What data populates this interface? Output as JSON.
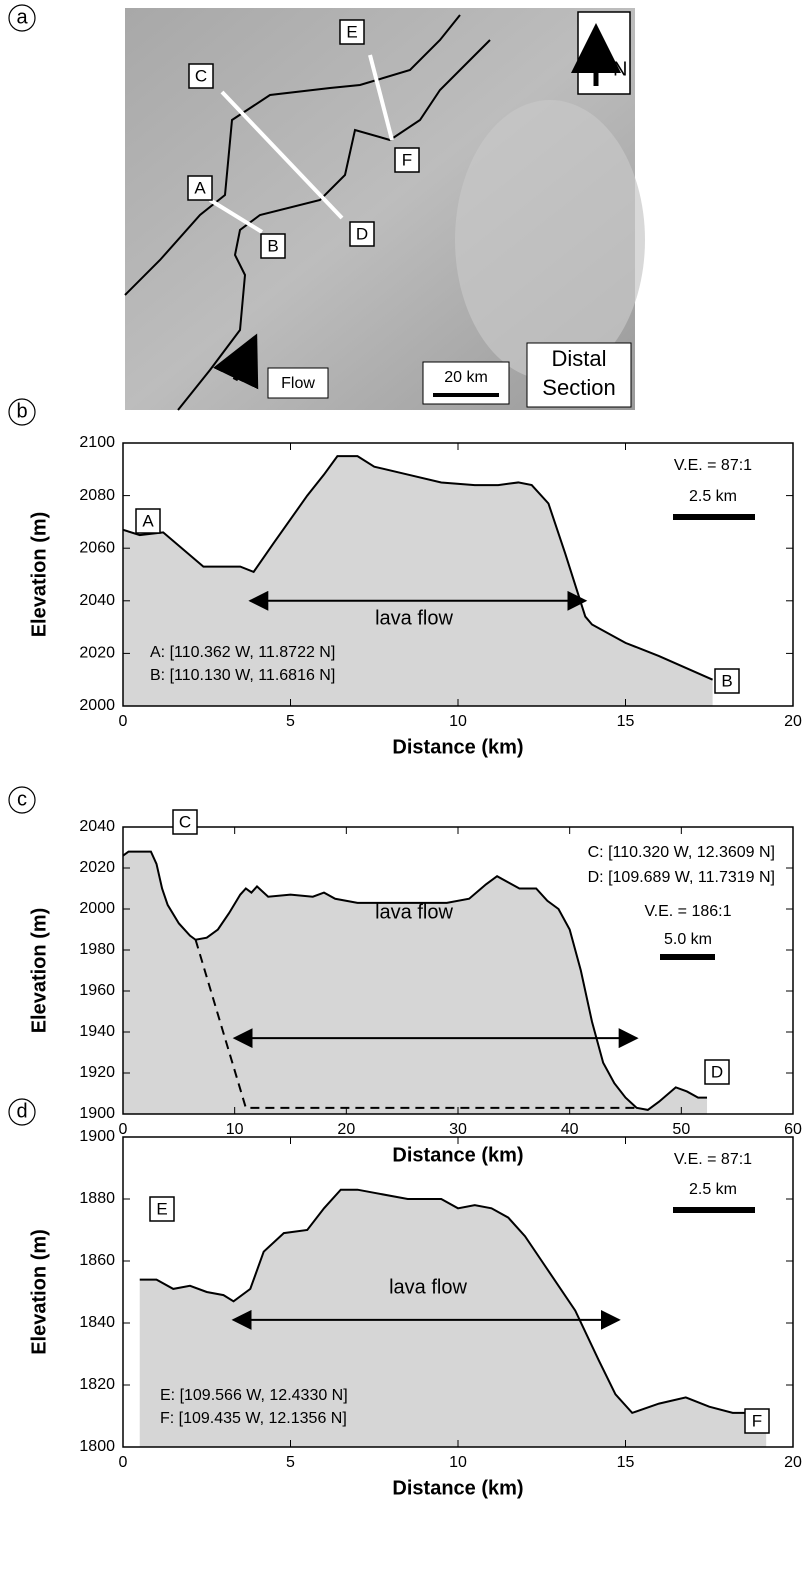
{
  "map": {
    "panel": "a",
    "profile_labels": [
      "A",
      "B",
      "C",
      "D",
      "E",
      "F"
    ],
    "north": "N",
    "flow": "Flow",
    "scale": "20 km",
    "section": [
      "Distal",
      "Section"
    ]
  },
  "chart_data": [
    {
      "type": "area",
      "panel": "b",
      "x_label": "Distance (km)",
      "y_label": "Elevation (m)",
      "fill": "#d6d6d6",
      "color": "#000000",
      "x": [
        0,
        0.5,
        1.2,
        2.4,
        3.5,
        3.9,
        4.5,
        5.5,
        6,
        6.4,
        7,
        7.5,
        8.5,
        9.5,
        10.5,
        11.2,
        11.8,
        12.2,
        12.7,
        13.2,
        13.8,
        14,
        15,
        16,
        17.6
      ],
      "values": [
        2067,
        2065,
        2066,
        2053,
        2053,
        2051,
        2062,
        2080,
        2088,
        2095,
        2095,
        2091,
        2088,
        2085,
        2084,
        2084,
        2085,
        2084,
        2077,
        2058,
        2034,
        2031,
        2024,
        2019,
        2010
      ],
      "xlim": [
        0,
        20
      ],
      "xticks": [
        0,
        5,
        10,
        15,
        20
      ],
      "ylim": [
        2000,
        2100
      ],
      "yticks": [
        2000,
        2020,
        2040,
        2060,
        2080,
        2100
      ],
      "start_label": "A",
      "end_label": "B",
      "coordinates": [
        "A: [110.362 W, 11.8722 N]",
        "B: [110.130 W, 11.6816 N]"
      ],
      "ve": "V.E. = 87:1",
      "scale": "2.5 km",
      "annotation": "lava flow",
      "arrow_x": [
        3.8,
        13.8
      ],
      "arrow_y": 2040
    },
    {
      "type": "area",
      "panel": "c",
      "x_label": "Distance (km)",
      "y_label": "Elevation (m)",
      "fill": "#d6d6d6",
      "color": "#000000",
      "x": [
        0,
        0.5,
        2.5,
        3,
        3.5,
        4,
        5,
        6,
        6.5,
        7.5,
        8.5,
        9.5,
        10.5,
        11,
        11.5,
        12,
        13,
        15,
        17,
        18,
        19,
        21,
        25,
        29,
        31,
        32.5,
        33.5,
        34.5,
        35.5,
        37,
        38,
        39,
        40,
        41,
        42,
        43,
        44,
        45,
        46,
        47,
        48,
        49.5,
        50.5,
        51.5,
        52.3
      ],
      "values": [
        2026,
        2028,
        2028,
        2022,
        2010,
        2002,
        1993,
        1987,
        1985,
        1986,
        1990,
        1998,
        2007,
        2010,
        2008,
        2011,
        2006,
        2007,
        2006,
        2008,
        2005,
        2003,
        2003,
        2003,
        2005,
        2012,
        2016,
        2013,
        2010,
        2010,
        2004,
        2000,
        1990,
        1970,
        1945,
        1925,
        1915,
        1908,
        1903,
        1902,
        1906,
        1913,
        1911,
        1908,
        1908
      ],
      "base_line": {
        "x": [
          6.5,
          11,
          46
        ],
        "values": [
          1985,
          1903,
          1903
        ]
      },
      "xlim": [
        0,
        60
      ],
      "xticks": [
        0,
        10,
        20,
        30,
        40,
        50,
        60
      ],
      "ylim": [
        1900,
        2040
      ],
      "yticks": [
        1900,
        1920,
        1940,
        1960,
        1980,
        2000,
        2020,
        2040
      ],
      "start_label": "C",
      "end_label": "D",
      "coordinates": [
        "C: [110.320 W, 12.3609 N]",
        "D: [109.689 W, 11.7319 N]"
      ],
      "ve": "V.E. = 186:1",
      "scale": "5.0 km",
      "annotation": "lava flow",
      "arrow_x": [
        10,
        46
      ],
      "arrow_y": 1937
    },
    {
      "type": "area",
      "panel": "d",
      "x_label": "Distance (km)",
      "y_label": "Elevation (m)",
      "fill": "#d6d6d6",
      "color": "#000000",
      "x": [
        0.5,
        1,
        1.5,
        2,
        2.5,
        3,
        3.3,
        3.8,
        4.2,
        4.8,
        5.5,
        6,
        6.5,
        7,
        7.5,
        8.5,
        9.5,
        10,
        10.5,
        11,
        11.5,
        12,
        12.5,
        13.5,
        14.2,
        14.7,
        15.2,
        16,
        16.8,
        17.5,
        18.2,
        19.2
      ],
      "values": [
        1854,
        1854,
        1851,
        1852,
        1850,
        1849,
        1847,
        1851,
        1863,
        1869,
        1870,
        1877,
        1883,
        1883,
        1882,
        1880,
        1880,
        1877,
        1878,
        1877,
        1874,
        1868,
        1860,
        1844,
        1828,
        1817,
        1811,
        1814,
        1816,
        1813,
        1811,
        1811
      ],
      "xlim": [
        0,
        20
      ],
      "xticks": [
        0,
        5,
        10,
        15,
        20
      ],
      "ylim": [
        1800,
        1900
      ],
      "yticks": [
        1800,
        1820,
        1840,
        1860,
        1880,
        1900
      ],
      "start_label": "E",
      "end_label": "F",
      "coordinates": [
        "E: [109.566 W, 12.4330 N]",
        "F: [109.435 W, 12.1356 N]"
      ],
      "ve": "V.E. = 87:1",
      "scale": "2.5 km",
      "annotation": "lava flow",
      "arrow_x": [
        3.3,
        14.8
      ],
      "arrow_y": 1841
    }
  ]
}
